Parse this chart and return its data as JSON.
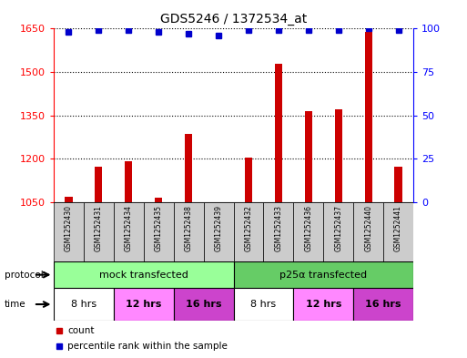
{
  "title": "GDS5246 / 1372534_at",
  "samples": [
    "GSM1252430",
    "GSM1252431",
    "GSM1252434",
    "GSM1252435",
    "GSM1252438",
    "GSM1252439",
    "GSM1252432",
    "GSM1252433",
    "GSM1252436",
    "GSM1252437",
    "GSM1252440",
    "GSM1252441"
  ],
  "counts": [
    1068,
    1172,
    1192,
    1065,
    1285,
    1038,
    1205,
    1530,
    1365,
    1370,
    1640,
    1172
  ],
  "percentiles": [
    98,
    99,
    99,
    98,
    97,
    96,
    99,
    99,
    99,
    99,
    100,
    99
  ],
  "ylim_left": [
    1050,
    1650
  ],
  "ylim_right": [
    0,
    100
  ],
  "yticks_left": [
    1050,
    1200,
    1350,
    1500,
    1650
  ],
  "yticks_right": [
    0,
    25,
    50,
    75,
    100
  ],
  "bar_color": "#cc0000",
  "dot_color": "#0000cc",
  "protocol_mock_label": "mock transfected",
  "protocol_p25_label": "p25α transfected",
  "protocol_colors": [
    "#99ff99",
    "#66cc66"
  ],
  "time_colors_map": {
    "8 hrs": "#ffffff",
    "12 hrs": "#ff88ff",
    "16 hrs": "#cc44cc"
  },
  "time_groups": [
    [
      0,
      2,
      "8 hrs"
    ],
    [
      2,
      4,
      "12 hrs"
    ],
    [
      4,
      6,
      "16 hrs"
    ],
    [
      6,
      8,
      "8 hrs"
    ],
    [
      8,
      10,
      "12 hrs"
    ],
    [
      10,
      12,
      "16 hrs"
    ]
  ],
  "bg_color": "#ffffff",
  "grid_color": "#000000",
  "sample_bg": "#cccccc",
  "legend_count_color": "#cc0000",
  "legend_pct_color": "#0000cc",
  "figsize": [
    5.13,
    3.93
  ],
  "dpi": 100
}
